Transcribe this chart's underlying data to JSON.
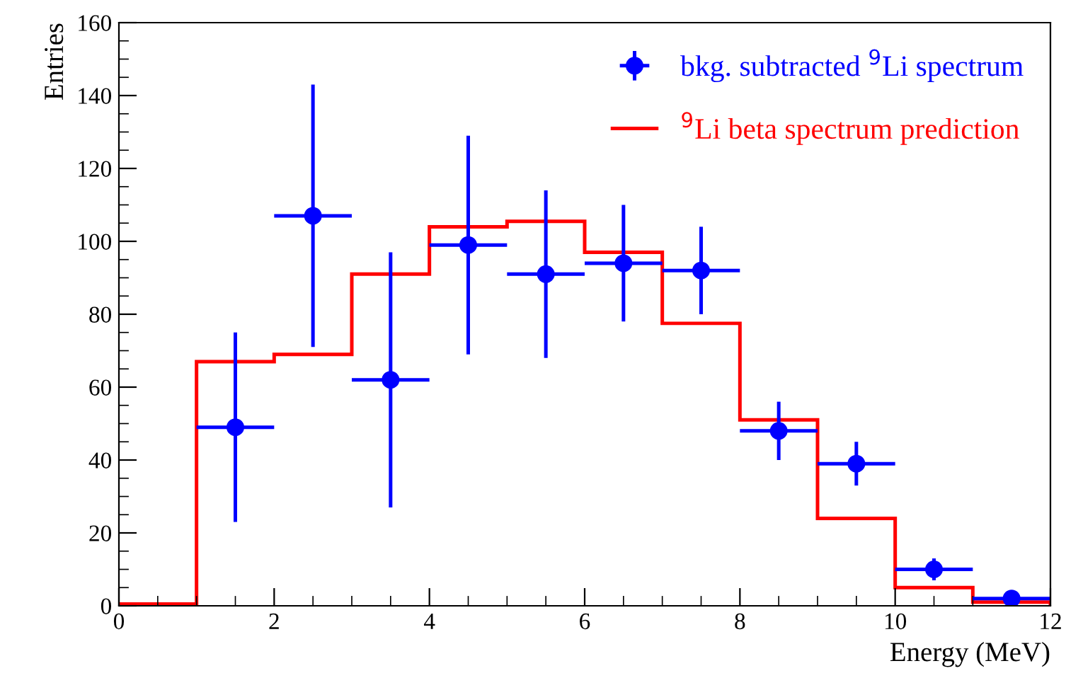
{
  "chart_data": {
    "type": "histogram",
    "xlabel": "Energy (MeV)",
    "ylabel": "Entries",
    "xlim": [
      0,
      12
    ],
    "xticks": [
      0,
      2,
      4,
      6,
      8,
      10,
      12
    ],
    "ylim": [
      0,
      160
    ],
    "yticks": [
      0,
      20,
      40,
      60,
      80,
      100,
      120,
      140,
      160
    ],
    "legend": "top right",
    "grid": false,
    "series": [
      {
        "type": "scatter",
        "name": "bkg. subtracted $^{9}$Li spectrum",
        "color": "#0000ff",
        "marker": "circle",
        "x": [
          1.5,
          2.5,
          3.5,
          4.5,
          5.5,
          6.5,
          7.5,
          8.5,
          9.5,
          10.5,
          11.5
        ],
        "values": [
          49,
          107,
          62,
          99,
          91,
          94,
          92,
          48,
          39,
          10,
          2
        ],
        "errors": [
          26,
          36,
          35,
          30,
          23,
          16,
          12,
          8,
          6,
          3,
          1
        ],
        "xerrors": [
          0.5,
          0.5,
          0.5,
          0.5,
          0.5,
          0.5,
          0.5,
          0.5,
          0.5,
          0.5,
          0.5
        ]
      },
      {
        "name": "$^{9}$Li beta spectrum prediction",
        "color": "#ff0000",
        "bins": [
          0,
          1,
          2,
          3,
          4,
          5,
          6,
          7,
          8,
          9,
          10,
          11,
          12
        ],
        "values": [
          0.5,
          67,
          69,
          91,
          104,
          105.5,
          97,
          77.5,
          51,
          24,
          5,
          1
        ]
      }
    ]
  }
}
